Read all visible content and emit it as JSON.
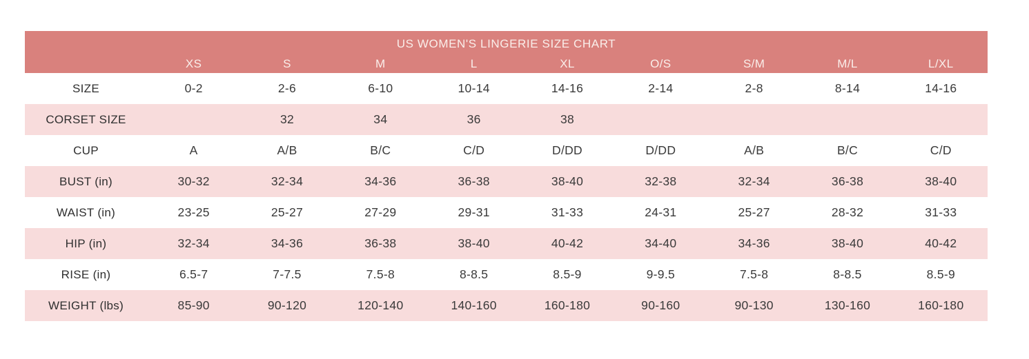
{
  "colors": {
    "header_bg": "#d9817d",
    "header_text": "#faeeea",
    "row_pink": "#f8dcdc",
    "row_white": "#ffffff",
    "body_text": "#3a3a3a"
  },
  "chart_data": {
    "type": "table",
    "title": "US WOMEN'S LINGERIE SIZE CHART",
    "columns": [
      "",
      "XS",
      "S",
      "M",
      "L",
      "XL",
      "O/S",
      "S/M",
      "M/L",
      "L/XL"
    ],
    "rows": [
      {
        "label": "SIZE",
        "values": [
          "0-2",
          "2-6",
          "6-10",
          "10-14",
          "14-16",
          "2-14",
          "2-8",
          "8-14",
          "14-16"
        ]
      },
      {
        "label": "CORSET SIZE",
        "values": [
          "",
          "32",
          "34",
          "36",
          "38",
          "",
          "",
          "",
          ""
        ]
      },
      {
        "label": "CUP",
        "values": [
          "A",
          "A/B",
          "B/C",
          "C/D",
          "D/DD",
          "D/DD",
          "A/B",
          "B/C",
          "C/D"
        ]
      },
      {
        "label": "BUST (in)",
        "values": [
          "30-32",
          "32-34",
          "34-36",
          "36-38",
          "38-40",
          "32-38",
          "32-34",
          "36-38",
          "38-40"
        ]
      },
      {
        "label": "WAIST (in)",
        "values": [
          "23-25",
          "25-27",
          "27-29",
          "29-31",
          "31-33",
          "24-31",
          "25-27",
          "28-32",
          "31-33"
        ]
      },
      {
        "label": "HIP (in)",
        "values": [
          "32-34",
          "34-36",
          "36-38",
          "38-40",
          "40-42",
          "34-40",
          "34-36",
          "38-40",
          "40-42"
        ]
      },
      {
        "label": "RISE (in)",
        "values": [
          "6.5-7",
          "7-7.5",
          "7.5-8",
          "8-8.5",
          "8.5-9",
          "9-9.5",
          "7.5-8",
          "8-8.5",
          "8.5-9"
        ]
      },
      {
        "label": "WEIGHT (lbs)",
        "values": [
          "85-90",
          "90-120",
          "120-140",
          "140-160",
          "160-180",
          "90-160",
          "90-130",
          "130-160",
          "160-180"
        ]
      }
    ]
  }
}
